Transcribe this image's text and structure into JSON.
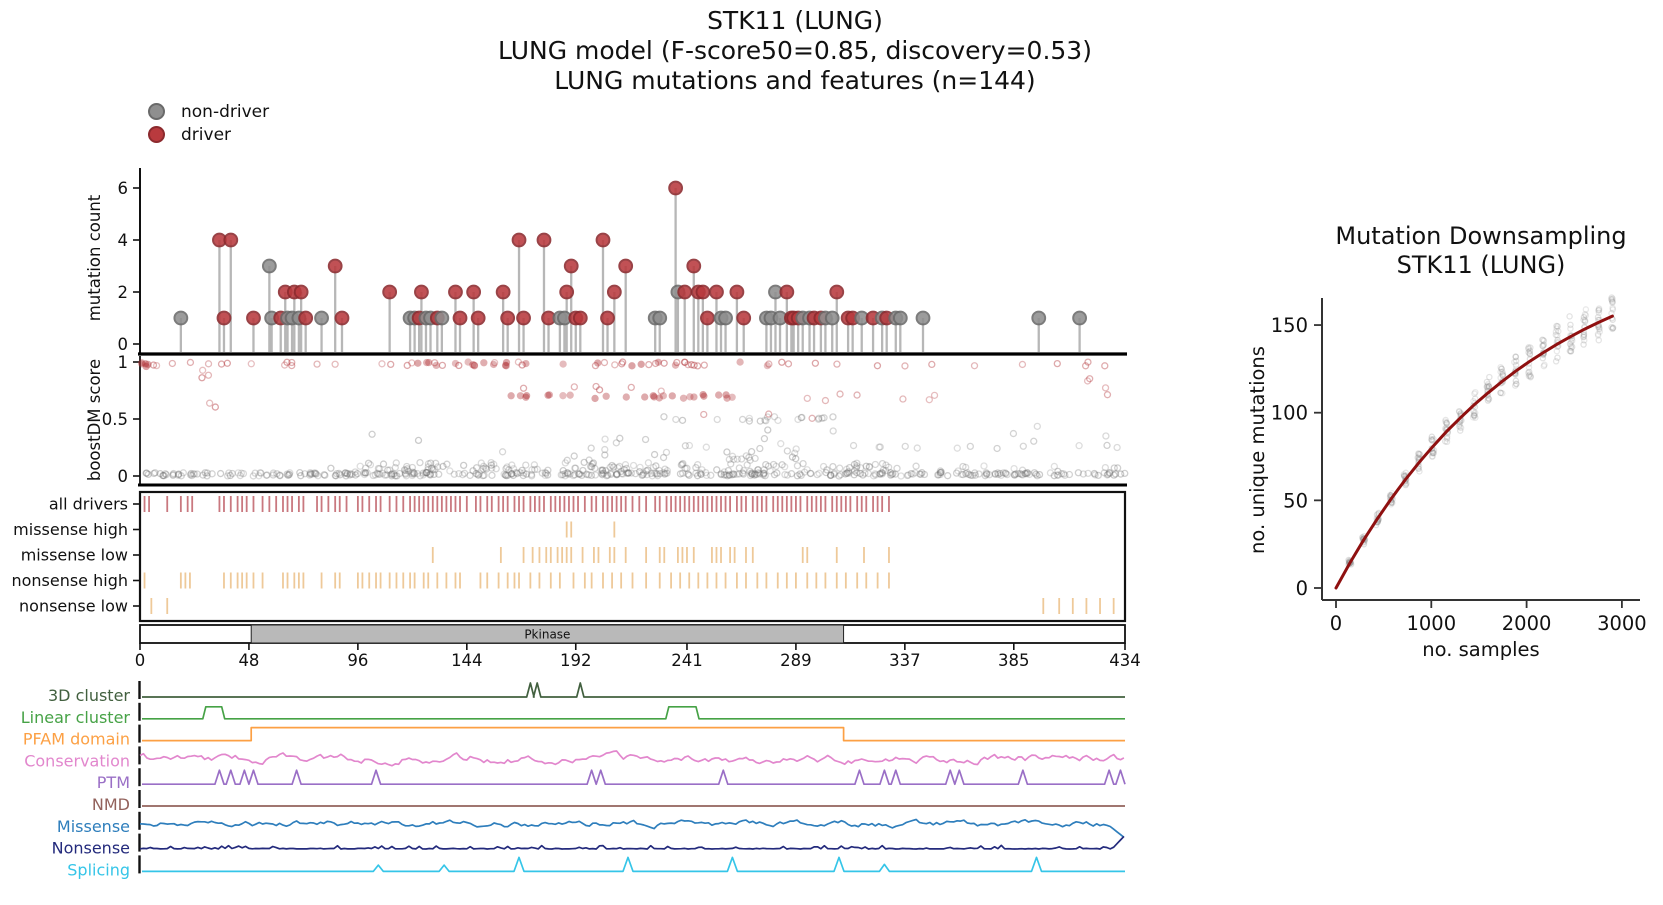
{
  "figure": {
    "title_line1": "STK11 (LUNG)",
    "title_line2": "LUNG model (F-score50=0.85, discovery=0.53)",
    "title_line3": "LUNG mutations and features (n=144)"
  },
  "legend": {
    "items": [
      {
        "label": "non-driver",
        "color": "#8f8f8f",
        "edge": "#6a6a6a"
      },
      {
        "label": "driver",
        "color": "#b93a3e",
        "edge": "#8c2a2e"
      }
    ]
  },
  "colors": {
    "driver": "#b93a3e",
    "driver_edge": "#8c2a2e",
    "nondriver": "#8f8f8f",
    "nondriver_edge": "#6a6a6a",
    "stem": "#7d7d7d",
    "boost_red": "#b03035",
    "boost_gray": "#707070",
    "all_drivers_tick": "#c06169",
    "orange_tick": "#ecc088",
    "domain_fill": "#b9b9b9",
    "curve": "#8f1010",
    "down_scatter": "#888888"
  },
  "chart_data": {
    "lollipop": {
      "type": "lollipop",
      "ylabel": "mutation count",
      "yticks": [
        0,
        2,
        4,
        6
      ],
      "legend": [
        "non-driver",
        "driver"
      ],
      "points": [
        [
          18,
          1,
          0
        ],
        [
          35,
          4,
          1
        ],
        [
          37,
          1,
          1
        ],
        [
          40,
          4,
          1
        ],
        [
          50,
          1,
          1
        ],
        [
          57,
          3,
          0
        ],
        [
          58,
          1,
          0
        ],
        [
          62,
          1,
          1
        ],
        [
          64,
          2,
          1
        ],
        [
          65,
          1,
          0
        ],
        [
          67,
          1,
          0
        ],
        [
          68,
          2,
          1
        ],
        [
          70,
          1,
          0
        ],
        [
          71,
          2,
          1
        ],
        [
          73,
          1,
          1
        ],
        [
          80,
          1,
          0
        ],
        [
          86,
          3,
          1
        ],
        [
          89,
          1,
          1
        ],
        [
          110,
          2,
          1
        ],
        [
          119,
          1,
          0
        ],
        [
          121,
          1,
          0
        ],
        [
          123,
          1,
          1
        ],
        [
          124,
          2,
          1
        ],
        [
          126,
          1,
          0
        ],
        [
          128,
          1,
          0
        ],
        [
          131,
          1,
          1
        ],
        [
          133,
          1,
          0
        ],
        [
          139,
          2,
          1
        ],
        [
          141,
          1,
          1
        ],
        [
          147,
          2,
          1
        ],
        [
          149,
          1,
          1
        ],
        [
          160,
          2,
          1
        ],
        [
          162,
          1,
          1
        ],
        [
          167,
          4,
          1
        ],
        [
          169,
          1,
          1
        ],
        [
          178,
          4,
          1
        ],
        [
          180,
          1,
          1
        ],
        [
          185,
          1,
          0
        ],
        [
          187,
          1,
          0
        ],
        [
          188,
          2,
          1
        ],
        [
          190,
          3,
          1
        ],
        [
          192,
          1,
          1
        ],
        [
          194,
          1,
          1
        ],
        [
          204,
          4,
          1
        ],
        [
          206,
          1,
          1
        ],
        [
          209,
          2,
          1
        ],
        [
          214,
          3,
          1
        ],
        [
          227,
          1,
          0
        ],
        [
          229,
          1,
          0
        ],
        [
          236,
          6,
          1
        ],
        [
          237,
          2,
          0
        ],
        [
          240,
          2,
          1
        ],
        [
          244,
          3,
          1
        ],
        [
          246,
          2,
          1
        ],
        [
          248,
          2,
          1
        ],
        [
          250,
          1,
          1
        ],
        [
          254,
          2,
          1
        ],
        [
          256,
          1,
          0
        ],
        [
          258,
          1,
          0
        ],
        [
          263,
          2,
          1
        ],
        [
          266,
          1,
          1
        ],
        [
          276,
          1,
          0
        ],
        [
          278,
          1,
          0
        ],
        [
          280,
          2,
          0
        ],
        [
          282,
          1,
          0
        ],
        [
          285,
          2,
          1
        ],
        [
          287,
          1,
          1
        ],
        [
          288,
          1,
          1
        ],
        [
          290,
          1,
          1
        ],
        [
          292,
          1,
          0
        ],
        [
          295,
          1,
          0
        ],
        [
          297,
          1,
          1
        ],
        [
          300,
          1,
          1
        ],
        [
          302,
          1,
          0
        ],
        [
          305,
          1,
          0
        ],
        [
          307,
          2,
          1
        ],
        [
          312,
          1,
          1
        ],
        [
          314,
          1,
          1
        ],
        [
          318,
          1,
          0
        ],
        [
          323,
          1,
          1
        ],
        [
          327,
          1,
          0
        ],
        [
          329,
          1,
          1
        ],
        [
          333,
          1,
          0
        ],
        [
          335,
          1,
          0
        ],
        [
          345,
          1,
          0
        ],
        [
          396,
          1,
          0
        ],
        [
          414,
          1,
          0
        ]
      ]
    },
    "boostdm": {
      "type": "scatter",
      "ylabel": "boostDM score",
      "yticks": [
        0,
        0.5,
        1
      ],
      "seed": 42,
      "gray_clusters": [
        {
          "n": 380,
          "x": [
            2,
            434
          ],
          "y": [
            0.0,
            0.03
          ]
        },
        {
          "n": 120,
          "x": [
            100,
            330
          ],
          "y": [
            0.04,
            0.12
          ]
        },
        {
          "n": 40,
          "x": [
            55,
            434
          ],
          "y": [
            0.03,
            0.09
          ]
        },
        {
          "n": 22,
          "x": [
            150,
            300
          ],
          "y": [
            0.13,
            0.3
          ]
        },
        {
          "n": 13,
          "x": [
            230,
            283
          ],
          "y": [
            0.48,
            0.52
          ]
        },
        {
          "n": 8,
          "x": [
            288,
            308
          ],
          "y": [
            0.49,
            0.52
          ]
        },
        {
          "n": 12,
          "x": [
            300,
            434
          ],
          "y": [
            0.24,
            0.27
          ]
        },
        {
          "n": 10,
          "x": [
            255,
            300
          ],
          "y": [
            0.14,
            0.18
          ]
        },
        {
          "n": 12,
          "x": [
            30,
            434
          ],
          "y": [
            0.3,
            0.45
          ]
        }
      ],
      "red_clusters": [
        {
          "n": 55,
          "x": [
            5,
            434
          ],
          "y": [
            0.965,
            1.0
          ]
        },
        {
          "n": 22,
          "x": [
            120,
            300
          ],
          "y": [
            0.965,
            1.0
          ],
          "filled": true
        },
        {
          "n": 5,
          "x": [
            0,
            4
          ],
          "y": [
            0.96,
            1.0
          ],
          "filled": true
        },
        {
          "n": 26,
          "x": [
            160,
            262
          ],
          "y": [
            0.68,
            0.715
          ],
          "filled": true
        },
        {
          "n": 8,
          "x": [
            290,
            434
          ],
          "y": [
            0.66,
            0.72
          ]
        },
        {
          "n": 6,
          "x": [
            140,
            230
          ],
          "y": [
            0.74,
            0.79
          ]
        },
        {
          "n": 3,
          "x": [
            8,
            40
          ],
          "y": [
            0.85,
            0.93
          ]
        },
        {
          "n": 3,
          "x": [
            230,
            300
          ],
          "y": [
            0.5,
            0.55
          ]
        },
        {
          "n": 3,
          "x": [
            380,
            430
          ],
          "y": [
            0.76,
            0.87
          ]
        },
        {
          "n": 2,
          "x": [
            25,
            42
          ],
          "y": [
            0.6,
            0.66
          ]
        }
      ]
    },
    "tick_tracks": {
      "rows": [
        {
          "label": "all drivers",
          "color_key": "all_drivers_tick",
          "positions": [
            2,
            4,
            12,
            18,
            21,
            23,
            35,
            37,
            40,
            43,
            45,
            47,
            50,
            54,
            57,
            60,
            63,
            65,
            67,
            70,
            72,
            78,
            80,
            83,
            86,
            88,
            91,
            96,
            98,
            101,
            104,
            106,
            110,
            113,
            116,
            119,
            121,
            123,
            125,
            127,
            129,
            131,
            133,
            135,
            137,
            139,
            141,
            144,
            148,
            150,
            153,
            155,
            158,
            160,
            162,
            165,
            167,
            169,
            172,
            174,
            176,
            178,
            181,
            183,
            185,
            187,
            189,
            191,
            193,
            196,
            199,
            201,
            204,
            206,
            208,
            210,
            212,
            214,
            217,
            220,
            223,
            227,
            229,
            232,
            234,
            236,
            238,
            240,
            242,
            244,
            246,
            248,
            250,
            252,
            254,
            256,
            258,
            260,
            263,
            265,
            267,
            270,
            272,
            274,
            276,
            279,
            281,
            283,
            285,
            287,
            289,
            291,
            294,
            296,
            298,
            300,
            302,
            305,
            307,
            309,
            311,
            313,
            316,
            318,
            320,
            323,
            325,
            327,
            330
          ]
        },
        {
          "label": "missense high",
          "color_key": "orange_tick",
          "positions": [
            188,
            190,
            209
          ]
        },
        {
          "label": "missense low",
          "color_key": "orange_tick",
          "positions": [
            129,
            159,
            169,
            173,
            176,
            179,
            181,
            184,
            186,
            188,
            190,
            195,
            200,
            202,
            207,
            209,
            214,
            223,
            229,
            231,
            237,
            239,
            241,
            244,
            252,
            254,
            256,
            260,
            262,
            267,
            270,
            292,
            294,
            307,
            319,
            330
          ]
        },
        {
          "label": "nonsense high",
          "color_key": "orange_tick",
          "positions": [
            2,
            18,
            20,
            22,
            37,
            40,
            43,
            45,
            47,
            50,
            54,
            63,
            65,
            68,
            70,
            72,
            80,
            86,
            88,
            96,
            98,
            101,
            104,
            106,
            110,
            113,
            116,
            119,
            121,
            125,
            127,
            131,
            135,
            139,
            141,
            150,
            153,
            158,
            162,
            165,
            167,
            172,
            176,
            181,
            185,
            191,
            196,
            199,
            204,
            208,
            212,
            217,
            223,
            229,
            234,
            238,
            242,
            246,
            250,
            254,
            258,
            263,
            267,
            272,
            276,
            281,
            285,
            289,
            294,
            298,
            302,
            307,
            311,
            316,
            320,
            325,
            330
          ]
        },
        {
          "label": "nonsense low",
          "color_key": "orange_tick",
          "positions": [
            5,
            12,
            398,
            405,
            411,
            417,
            423,
            429
          ]
        }
      ]
    },
    "domain": {
      "label": "Pkinase",
      "start": 49,
      "end": 310,
      "xmax": 434,
      "axis_ticks": [
        0,
        48,
        96,
        144,
        192,
        241,
        289,
        337,
        385,
        434
      ]
    },
    "feature_tracks": [
      {
        "label": "3D cluster",
        "color": "#42603f",
        "kind": "spikes",
        "spikes": [
          [
            172,
            1
          ],
          [
            175,
            1
          ],
          [
            194,
            1
          ]
        ],
        "half_width": 1.6
      },
      {
        "label": "Linear cluster",
        "color": "#46a246",
        "kind": "plateau",
        "ranges": [
          [
            29,
            36
          ],
          [
            233,
            245
          ]
        ]
      },
      {
        "label": "PFAM domain",
        "color": "#fca044",
        "kind": "step",
        "range": [
          49,
          310
        ]
      },
      {
        "label": "Conservation",
        "color": "#e287cd",
        "kind": "noise",
        "seed": 7,
        "amp": 6
      },
      {
        "label": "PTM",
        "color": "#9a6fc6",
        "kind": "spikes",
        "spikes": [
          [
            35,
            1
          ],
          [
            40,
            1
          ],
          [
            46,
            1
          ],
          [
            50,
            1
          ],
          [
            69,
            1
          ],
          [
            104,
            1
          ],
          [
            199,
            1
          ],
          [
            203,
            1
          ],
          [
            257,
            1
          ],
          [
            317,
            1
          ],
          [
            328,
            1
          ],
          [
            333,
            1
          ],
          [
            357,
            1
          ],
          [
            361,
            1
          ],
          [
            389,
            1
          ],
          [
            427,
            1
          ],
          [
            432,
            1
          ]
        ],
        "half_width": 2.0
      },
      {
        "label": "NMD",
        "color": "#93625c",
        "kind": "flat"
      },
      {
        "label": "Missense",
        "color": "#2e7ebc",
        "kind": "noise",
        "seed": 11,
        "amp": 4.5,
        "end": "down"
      },
      {
        "label": "Nonsense",
        "color": "#232a7c",
        "kind": "lownoise",
        "seed": 13,
        "amp": 3.2,
        "end": "up"
      },
      {
        "label": "Splicing",
        "color": "#35c5e8",
        "kind": "spikes",
        "spikes": [
          [
            105,
            0.45
          ],
          [
            134,
            0.45
          ],
          [
            167,
            1
          ],
          [
            215,
            1
          ],
          [
            261,
            1
          ],
          [
            308,
            1
          ],
          [
            328,
            0.5
          ],
          [
            395,
            1
          ]
        ],
        "half_width": 2.2
      }
    ],
    "downsampling": {
      "type": "scatter",
      "title_line1": "Mutation Downsampling",
      "title_line2": "STK11 (LUNG)",
      "xlabel": "no. samples",
      "ylabel": "no. unique mutations",
      "xticks": [
        0,
        1000,
        2000,
        3000
      ],
      "yticks": [
        0,
        50,
        100,
        150
      ],
      "xlim": [
        0,
        3100
      ],
      "ylim": [
        0,
        160
      ],
      "curve": [
        [
          0,
          0
        ],
        [
          145,
          14.2
        ],
        [
          290,
          27.3
        ],
        [
          435,
          39.6
        ],
        [
          580,
          51.0
        ],
        [
          725,
          61.6
        ],
        [
          870,
          71.5
        ],
        [
          1015,
          80.6
        ],
        [
          1160,
          89.2
        ],
        [
          1305,
          97.1
        ],
        [
          1450,
          104.5
        ],
        [
          1595,
          111.3
        ],
        [
          1740,
          117.7
        ],
        [
          1885,
          123.7
        ],
        [
          2030,
          129.2
        ],
        [
          2175,
          134.3
        ],
        [
          2320,
          139.1
        ],
        [
          2465,
          143.5
        ],
        [
          2610,
          147.7
        ],
        [
          2755,
          151.5
        ],
        [
          2900,
          155.1
        ]
      ],
      "scatter_spec": {
        "seed": 99,
        "x_step": 145,
        "n_clusters": 20,
        "reps": 16,
        "x_jitter": 28,
        "y_jitter": 0.14
      }
    }
  }
}
